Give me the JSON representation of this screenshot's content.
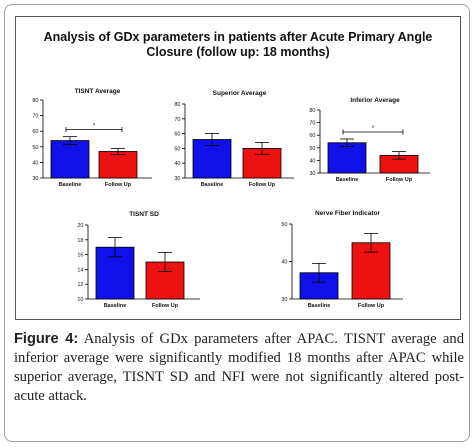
{
  "figure": {
    "title_line1": "Analysis of GDx parameters in patients after Acute Primary Angle",
    "title_line2": "Closure (follow up: 18 months)",
    "caption_label": "Figure 4:",
    "caption_text": " Analysis of GDx parameters after APAC. TISNT average and inferior average were significantly modified 18 months after APAC while superior average, TISNT SD and NFI were not significantly altered post-acute attack."
  },
  "colors": {
    "baseline": "#1010e8",
    "followup": "#ee1111"
  },
  "chart_data": [
    {
      "type": "bar",
      "title": "TISNT Average",
      "categories": [
        "Baseline",
        "Follow Up"
      ],
      "values": [
        54,
        47
      ],
      "errors": [
        2.5,
        2
      ],
      "yticks": [
        30,
        40,
        50,
        60,
        70,
        80
      ],
      "ylim": [
        30,
        80
      ],
      "significance": "*"
    },
    {
      "type": "bar",
      "title": "Superior Average",
      "categories": [
        "Baseline",
        "Follow Up"
      ],
      "values": [
        56,
        50
      ],
      "errors": [
        4,
        4
      ],
      "yticks": [
        30,
        40,
        50,
        60,
        70,
        80
      ],
      "ylim": [
        30,
        80
      ],
      "significance": ""
    },
    {
      "type": "bar",
      "title": "Inferior Average",
      "categories": [
        "Baseline",
        "Follow Up"
      ],
      "values": [
        54,
        44
      ],
      "errors": [
        3,
        3
      ],
      "yticks": [
        30,
        40,
        50,
        60,
        70,
        80
      ],
      "ylim": [
        30,
        80
      ],
      "significance": "*"
    },
    {
      "type": "bar",
      "title": "TISNT SD",
      "categories": [
        "Baseline",
        "Follow Up"
      ],
      "values": [
        17,
        15
      ],
      "errors": [
        1.3,
        1.3
      ],
      "yticks": [
        10,
        12,
        14,
        16,
        18,
        20
      ],
      "ylim": [
        10,
        20
      ],
      "significance": ""
    },
    {
      "type": "bar",
      "title": "Nerve Fiber Indicator",
      "categories": [
        "Baseline",
        "Follow Up"
      ],
      "values": [
        37,
        45
      ],
      "errors": [
        2.5,
        2.5
      ],
      "yticks": [
        30,
        40,
        50
      ],
      "ylim": [
        30,
        50
      ],
      "significance": ""
    }
  ]
}
